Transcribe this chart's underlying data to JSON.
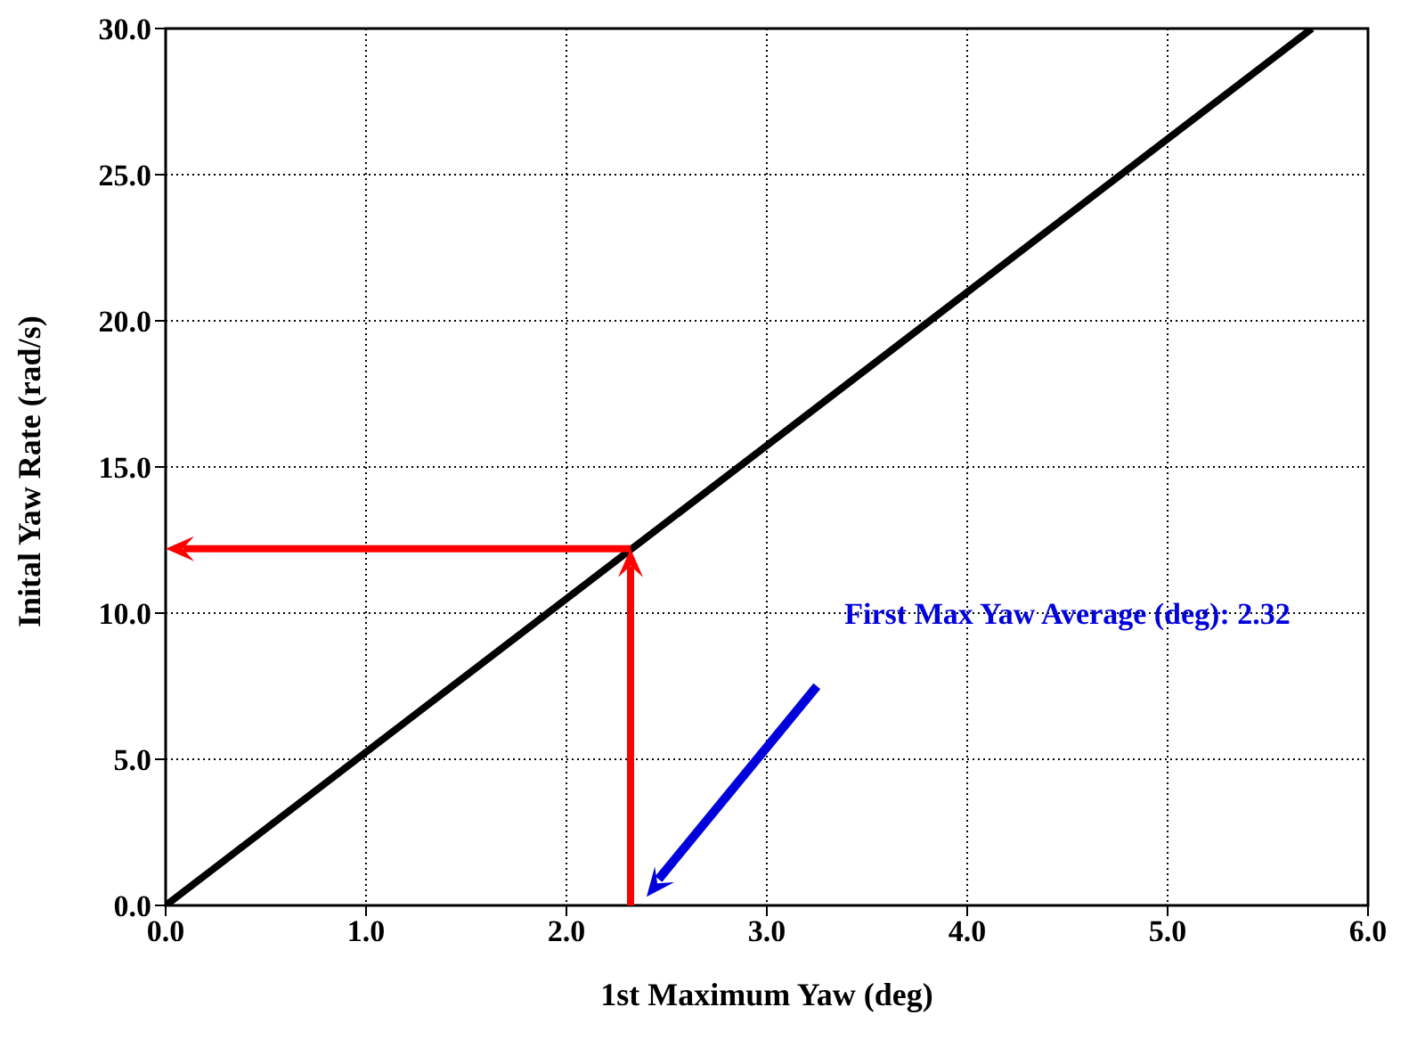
{
  "chart_data": {
    "type": "line",
    "xlabel": "1st Maximum Yaw (deg)",
    "ylabel": "Inital Yaw Rate (rad/s)",
    "xlim": [
      0,
      6
    ],
    "ylim": [
      0,
      30
    ],
    "xticks": [
      {
        "value": 0,
        "label": "0.0"
      },
      {
        "value": 1,
        "label": "1.0"
      },
      {
        "value": 2,
        "label": "2.0"
      },
      {
        "value": 3,
        "label": "3.0"
      },
      {
        "value": 4,
        "label": "4.0"
      },
      {
        "value": 5,
        "label": "5.0"
      },
      {
        "value": 6,
        "label": "6.0"
      }
    ],
    "yticks": [
      {
        "value": 0,
        "label": "0.0"
      },
      {
        "value": 5,
        "label": "5.0"
      },
      {
        "value": 10,
        "label": "10.0"
      },
      {
        "value": 15,
        "label": "15.0"
      },
      {
        "value": 20,
        "label": "20.0"
      },
      {
        "value": 25,
        "label": "25.0"
      },
      {
        "value": 30,
        "label": "30.0"
      }
    ],
    "grid": true,
    "marker": "none",
    "line_style": "solid",
    "series": [
      {
        "color": "#000000",
        "x": [
          0,
          5.72
        ],
        "values": [
          0,
          30
        ]
      }
    ],
    "annotations": [
      "First Max Yaw Average (deg):  2.32"
    ]
  }
}
